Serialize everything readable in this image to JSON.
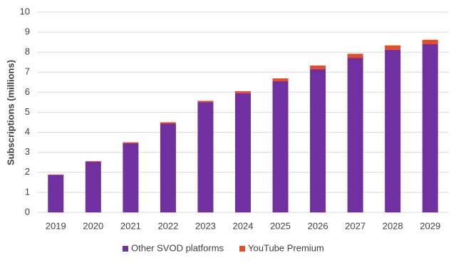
{
  "chart_data": {
    "type": "stacked-bar",
    "y_label": "Subscriptions (millions)",
    "categories": [
      "2019",
      "2020",
      "2021",
      "2022",
      "2023",
      "2024",
      "2025",
      "2026",
      "2027",
      "2028",
      "2029"
    ],
    "series": [
      {
        "name": "Other SVOD platforms",
        "color": "#7030a0",
        "values": [
          1.87,
          2.53,
          3.45,
          4.43,
          5.5,
          5.95,
          6.55,
          7.15,
          7.72,
          8.12,
          8.4
        ]
      },
      {
        "name": "YouTube Premium",
        "color": "#e84c22",
        "values": [
          0.02,
          0.03,
          0.05,
          0.07,
          0.07,
          0.1,
          0.14,
          0.18,
          0.2,
          0.22,
          0.22
        ]
      }
    ],
    "ylim": [
      0,
      10
    ],
    "yticks": [
      0,
      1,
      2,
      3,
      4,
      5,
      6,
      7,
      8,
      9,
      10
    ],
    "grid": true,
    "legend": "bottom"
  }
}
